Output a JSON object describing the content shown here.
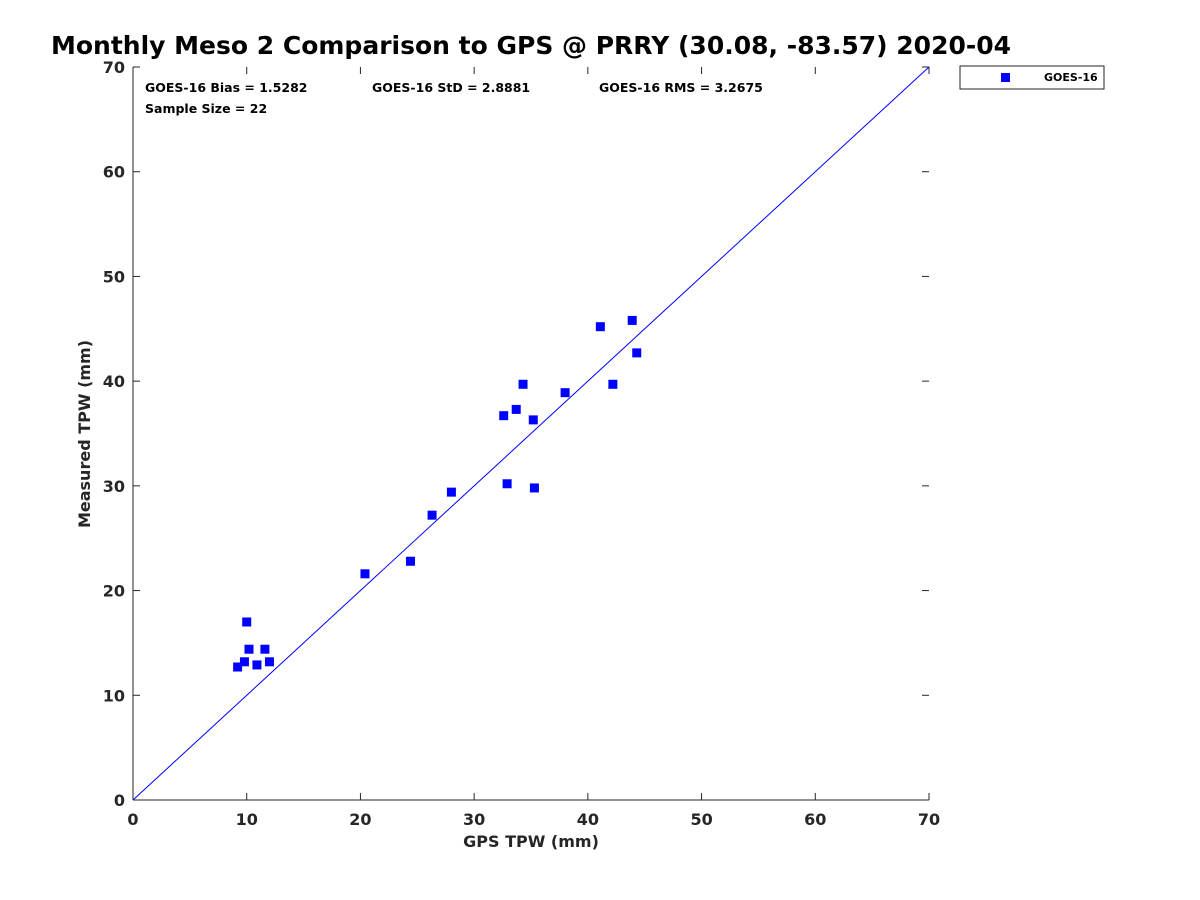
{
  "chart_data": {
    "type": "scatter",
    "title": "Monthly Meso 2 Comparison to GPS @ PRRY (30.08, -83.57) 2020-04",
    "xlabel": "GPS TPW (mm)",
    "ylabel": "Measured TPW (mm)",
    "xlim": [
      0,
      70
    ],
    "ylim": [
      0,
      70
    ],
    "xticks": [
      0,
      10,
      20,
      30,
      40,
      50,
      60,
      70
    ],
    "yticks": [
      0,
      10,
      20,
      30,
      40,
      50,
      60,
      70
    ],
    "grid": false,
    "legend_position": "outside-top-right",
    "series": [
      {
        "name": "GOES-16",
        "color": "#0000ff",
        "marker": "square",
        "points": [
          {
            "x": 9.2,
            "y": 12.7
          },
          {
            "x": 9.8,
            "y": 13.2
          },
          {
            "x": 10.0,
            "y": 17.0
          },
          {
            "x": 10.2,
            "y": 14.4
          },
          {
            "x": 10.9,
            "y": 12.9
          },
          {
            "x": 11.6,
            "y": 14.4
          },
          {
            "x": 12.0,
            "y": 13.2
          },
          {
            "x": 20.4,
            "y": 21.6
          },
          {
            "x": 24.4,
            "y": 22.8
          },
          {
            "x": 26.3,
            "y": 27.2
          },
          {
            "x": 28.0,
            "y": 29.4
          },
          {
            "x": 32.6,
            "y": 36.7
          },
          {
            "x": 32.9,
            "y": 30.2
          },
          {
            "x": 33.7,
            "y": 37.3
          },
          {
            "x": 34.3,
            "y": 39.7
          },
          {
            "x": 35.2,
            "y": 36.3
          },
          {
            "x": 35.3,
            "y": 29.8
          },
          {
            "x": 38.0,
            "y": 38.9
          },
          {
            "x": 41.1,
            "y": 45.2
          },
          {
            "x": 42.2,
            "y": 39.7
          },
          {
            "x": 43.9,
            "y": 45.8
          },
          {
            "x": 44.3,
            "y": 42.7
          }
        ]
      }
    ],
    "reference_line": {
      "name": "1:1",
      "color": "#0000ff",
      "from": [
        0,
        0
      ],
      "to": [
        70,
        70
      ]
    },
    "annotations": {
      "bias": "GOES-16 Bias = 1.5282",
      "std": "GOES-16 StD = 2.8881",
      "rms": "GOES-16 RMS = 3.2675",
      "sample_size": "Sample Size = 22"
    }
  }
}
